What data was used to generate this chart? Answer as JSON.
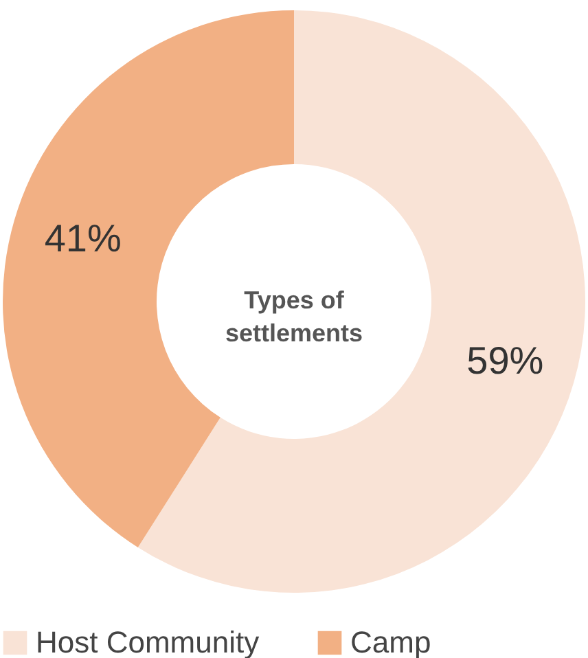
{
  "chart_data": {
    "type": "donut",
    "title": "Types of settlements",
    "categories": [
      "Host Community",
      "Camp"
    ],
    "values": [
      59,
      41
    ],
    "colors": [
      "#f9e3d6",
      "#f2b084"
    ],
    "value_labels": [
      "59%",
      "41%"
    ],
    "legend": "bottom"
  }
}
